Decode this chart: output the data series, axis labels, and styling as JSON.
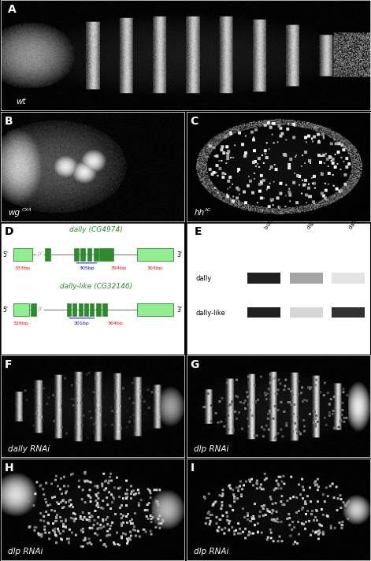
{
  "bg_color": "#000000",
  "panel_label_color_light": "#ffffff",
  "panel_label_color_dark": "#000000",
  "gene_color_dark": "#2d8a2d",
  "gene_color_light": "#90ee90",
  "gel_bands": {
    "dally": [
      1.0,
      0.4,
      0.12
    ],
    "dally-like": [
      1.0,
      0.18,
      0.92
    ]
  },
  "gel_columns": [
    "buffer injected",
    "dlp RNAi",
    "dally RNAi"
  ],
  "height_ratios": [
    1.3,
    1.3,
    1.55,
    1.2,
    1.2
  ]
}
